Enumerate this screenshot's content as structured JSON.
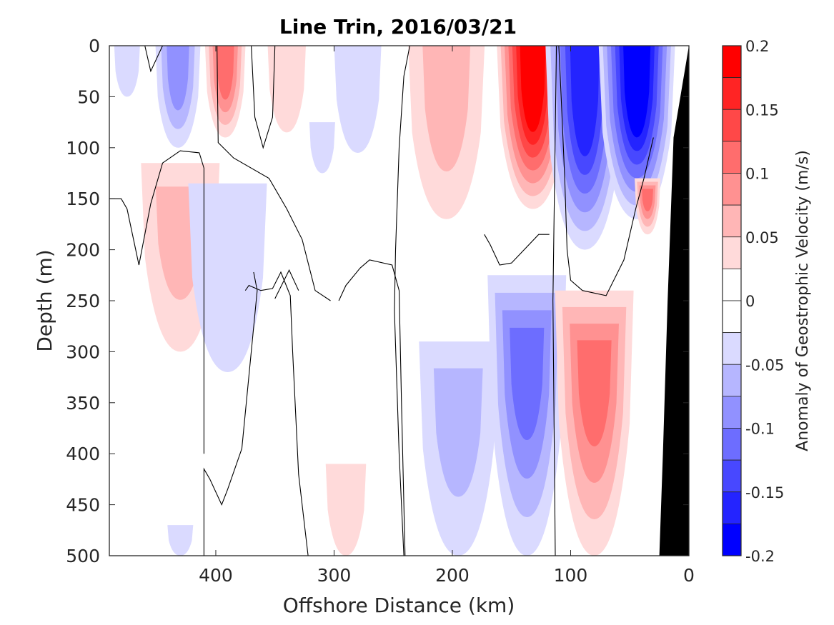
{
  "chart_data": {
    "type": "heatmap",
    "subtype": "filled-contour",
    "title": "Line Trin, 2016/03/21",
    "xlabel": "Offshore Distance (km)",
    "ylabel": "Depth (m)",
    "xlim": [
      490,
      0
    ],
    "ylim": [
      0,
      500
    ],
    "x_reversed": true,
    "y_reversed": true,
    "xticks": [
      400,
      300,
      200,
      100,
      0
    ],
    "xtick_labels": [
      "400",
      "300",
      "200",
      "100",
      "0"
    ],
    "yticks": [
      0,
      50,
      100,
      150,
      200,
      250,
      300,
      350,
      400,
      450,
      500
    ],
    "ytick_labels": [
      "0",
      "50",
      "100",
      "150",
      "200",
      "250",
      "300",
      "350",
      "400",
      "450",
      "500"
    ],
    "grid": false,
    "colorbar": {
      "label": "Anomaly of Geostrophic Velocity (m/s)",
      "limits": [
        -0.2,
        0.2
      ],
      "level_step": 0.025,
      "ticks": [
        0.2,
        0.15,
        0.1,
        0.05,
        0,
        -0.05,
        -0.1,
        -0.15,
        -0.2
      ],
      "tick_labels": [
        "0.2",
        "0.15",
        "0.1",
        "0.05",
        "0",
        "-0.05",
        "-0.1",
        "-0.15",
        "-0.2"
      ],
      "placement": "right",
      "bins": [
        {
          "from": 0.175,
          "to": 0.2,
          "color": "#ff0000"
        },
        {
          "from": 0.15,
          "to": 0.175,
          "color": "#ff2424"
        },
        {
          "from": 0.125,
          "to": 0.15,
          "color": "#ff4848"
        },
        {
          "from": 0.1,
          "to": 0.125,
          "color": "#ff6d6d"
        },
        {
          "from": 0.075,
          "to": 0.1,
          "color": "#ff9191"
        },
        {
          "from": 0.05,
          "to": 0.075,
          "color": "#ffb6b6"
        },
        {
          "from": 0.025,
          "to": 0.05,
          "color": "#ffdada"
        },
        {
          "from": 0.0,
          "to": 0.025,
          "color": "#ffffff"
        },
        {
          "from": -0.025,
          "to": 0.0,
          "color": "#ffffff"
        },
        {
          "from": -0.05,
          "to": -0.025,
          "color": "#dadaff"
        },
        {
          "from": -0.075,
          "to": -0.05,
          "color": "#b6b6ff"
        },
        {
          "from": -0.1,
          "to": -0.075,
          "color": "#9191ff"
        },
        {
          "from": -0.125,
          "to": -0.1,
          "color": "#6d6dff"
        },
        {
          "from": -0.15,
          "to": -0.125,
          "color": "#4848ff"
        },
        {
          "from": -0.175,
          "to": -0.15,
          "color": "#2424ff"
        },
        {
          "from": -0.2,
          "to": -0.175,
          "color": "#0000ff"
        }
      ]
    },
    "bathymetry_color": "#000000",
    "bathymetry": [
      [
        0,
        0
      ],
      [
        13,
        90
      ],
      [
        18,
        250
      ],
      [
        22,
        400
      ],
      [
        25,
        500
      ],
      [
        0,
        500
      ]
    ],
    "features": [
      {
        "name": "blue-cell-far-offshore-surface",
        "x_center": 475,
        "depth_range": [
          0,
          50
        ],
        "peak": -0.04
      },
      {
        "name": "blue-cell-430km",
        "x_center": 432,
        "depth_range": [
          0,
          100
        ],
        "peak": -0.085
      },
      {
        "name": "red-cell-390km",
        "x_center": 392,
        "depth_range": [
          0,
          90
        ],
        "peak": 0.1
      },
      {
        "name": "red-cell-340km",
        "x_center": 340,
        "depth_range": [
          0,
          85
        ],
        "peak": 0.04
      },
      {
        "name": "blue-cell-280km",
        "x_center": 280,
        "depth_range": [
          0,
          105
        ],
        "peak": -0.04
      },
      {
        "name": "blue-cell-305km",
        "x_center": 310,
        "depth_range": [
          75,
          125
        ],
        "peak": -0.04
      },
      {
        "name": "red-cell-200km",
        "x_center": 205,
        "depth_range": [
          0,
          170
        ],
        "peak": 0.07
      },
      {
        "name": "red-jet-130km",
        "x_center": 132,
        "depth_range": [
          0,
          160
        ],
        "peak": 0.18
      },
      {
        "name": "blue-jet-90km",
        "x_center": 88,
        "depth_range": [
          0,
          200
        ],
        "peak": -0.16
      },
      {
        "name": "blue-jet-45km",
        "x_center": 44,
        "depth_range": [
          0,
          170
        ],
        "peak": -0.19
      },
      {
        "name": "red-cell-430km-mid",
        "x_center": 430,
        "depth_range": [
          115,
          300
        ],
        "peak": 0.05
      },
      {
        "name": "blue-cell-385km-mid",
        "x_center": 390,
        "depth_range": [
          135,
          320
        ],
        "peak": -0.04
      },
      {
        "name": "red-cell-35km-mid",
        "x_center": 35,
        "depth_range": [
          130,
          185
        ],
        "peak": 0.1
      },
      {
        "name": "blue-cell-195km-deep",
        "x_center": 195,
        "depth_range": [
          290,
          500
        ],
        "peak": -0.07
      },
      {
        "name": "blue-cell-135km-deep",
        "x_center": 137,
        "depth_range": [
          225,
          500
        ],
        "peak": -0.1
      },
      {
        "name": "red-cell-80km-deep",
        "x_center": 80,
        "depth_range": [
          240,
          500
        ],
        "peak": 0.1
      },
      {
        "name": "red-cell-290km-deep",
        "x_center": 290,
        "depth_range": [
          410,
          500
        ],
        "peak": 0.04
      },
      {
        "name": "blue-cell-430km-deep",
        "x_center": 430,
        "depth_range": [
          470,
          500
        ],
        "peak": -0.04
      }
    ],
    "zero_contours": [
      [
        [
          460,
          0
        ],
        [
          455,
          25
        ],
        [
          445,
          0
        ]
      ],
      [
        [
          370,
          0
        ],
        [
          367,
          70
        ],
        [
          360,
          100
        ],
        [
          352,
          70
        ],
        [
          350,
          0
        ]
      ],
      [
        [
          399,
          0
        ],
        [
          398,
          95
        ],
        [
          385,
          110
        ],
        [
          355,
          130
        ],
        [
          340,
          160
        ],
        [
          327,
          190
        ],
        [
          316,
          240
        ],
        [
          303,
          250
        ]
      ],
      [
        [
          490,
          150
        ],
        [
          480,
          150
        ],
        [
          475,
          160
        ],
        [
          465,
          215
        ],
        [
          455,
          155
        ],
        [
          445,
          115
        ],
        [
          430,
          103
        ],
        [
          414,
          105
        ],
        [
          410,
          120
        ],
        [
          410,
          400
        ]
      ],
      [
        [
          410,
          500
        ],
        [
          410,
          415
        ],
        [
          405,
          425
        ],
        [
          395,
          450
        ],
        [
          390,
          435
        ],
        [
          378,
          395
        ],
        [
          365,
          240
        ],
        [
          368,
          222
        ]
      ],
      [
        [
          236,
          0
        ],
        [
          241,
          30
        ],
        [
          245,
          100
        ],
        [
          248,
          200
        ],
        [
          249,
          260
        ],
        [
          247,
          330
        ],
        [
          245,
          400
        ],
        [
          241,
          500
        ]
      ],
      [
        [
          240,
          500
        ],
        [
          243,
          350
        ],
        [
          245,
          240
        ],
        [
          251,
          215
        ],
        [
          270,
          210
        ],
        [
          278,
          218
        ],
        [
          290,
          235
        ],
        [
          296,
          250
        ]
      ],
      [
        [
          322,
          500
        ],
        [
          330,
          420
        ],
        [
          335,
          300
        ],
        [
          337,
          245
        ],
        [
          345,
          222
        ],
        [
          352,
          238
        ],
        [
          362,
          240
        ],
        [
          372,
          235
        ],
        [
          375,
          240
        ]
      ],
      [
        [
          330,
          240
        ],
        [
          338,
          220
        ],
        [
          350,
          248
        ]
      ],
      [
        [
          112,
          0
        ],
        [
          115,
          250
        ],
        [
          113,
          500
        ]
      ],
      [
        [
          110,
          0
        ],
        [
          108,
          50
        ],
        [
          105,
          130
        ],
        [
          103,
          200
        ],
        [
          100,
          230
        ],
        [
          90,
          240
        ],
        [
          70,
          245
        ],
        [
          55,
          210
        ],
        [
          45,
          160
        ],
        [
          38,
          130
        ],
        [
          30,
          90
        ]
      ],
      [
        [
          118,
          185
        ],
        [
          127,
          185
        ],
        [
          150,
          213
        ],
        [
          160,
          215
        ],
        [
          168,
          195
        ],
        [
          173,
          185
        ]
      ]
    ]
  }
}
